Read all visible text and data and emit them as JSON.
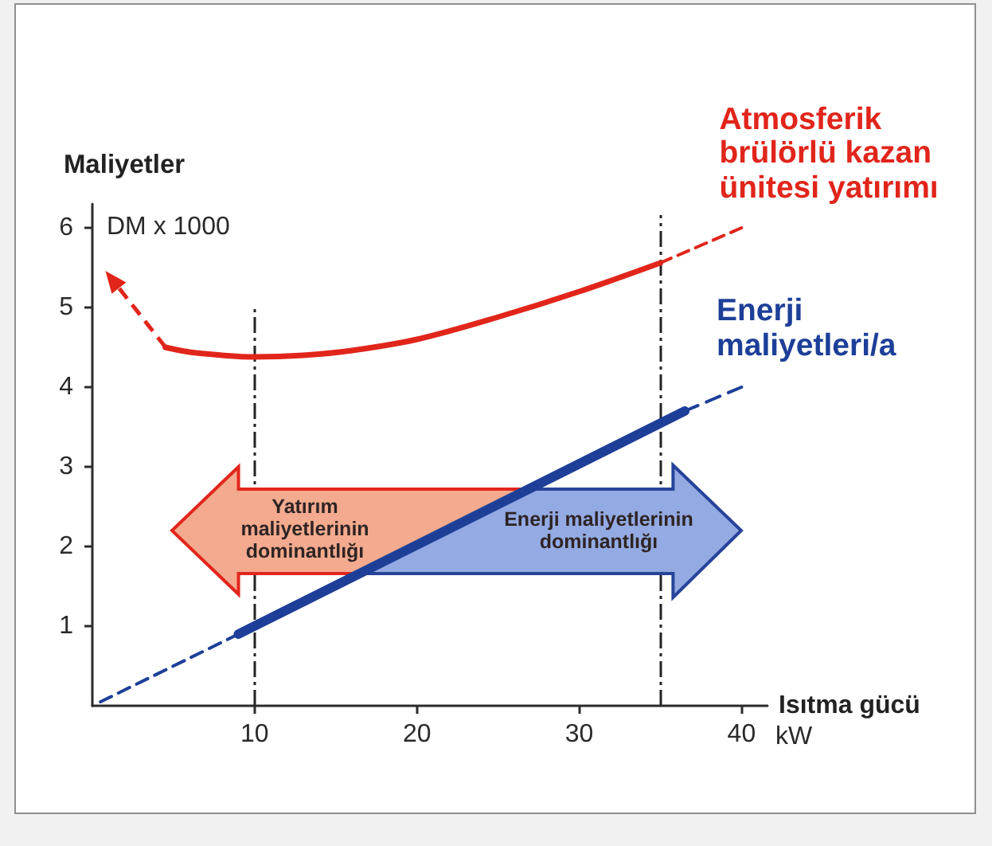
{
  "chart_data": {
    "type": "line",
    "xlabel": "Isıtma gücü",
    "ylabel": "Maliyetler",
    "annotations": [
      "DM x 1000",
      "kW",
      "Yatırım maliyetlerinin dominantlığı",
      "Enerji maliyetlerinin dominantlığı"
    ],
    "xlim": [
      0,
      41.6
    ],
    "ylim": [
      0,
      6.3
    ],
    "xticks": [
      10,
      20,
      30,
      40
    ],
    "yticks": [
      1,
      2,
      3,
      4,
      5,
      6
    ],
    "marker": "none",
    "series": [
      {
        "name": "Atmosferik brülörlü kazan ünitesi yatırımı",
        "color": "#e1251b",
        "line_style": "solid",
        "x": [
          4.5,
          6,
          8,
          10,
          13,
          16,
          20,
          25,
          30,
          35
        ],
        "values": [
          4.5,
          4.44,
          4.4,
          4.38,
          4.4,
          4.46,
          4.6,
          4.88,
          5.2,
          5.56
        ]
      },
      {
        "color": "#e1251b",
        "line_style": "dashed",
        "x": [
          35,
          40
        ],
        "values": [
          5.56,
          6.0
        ]
      },
      {
        "color": "#1d3f98",
        "line_style": "dashed",
        "x": [
          0.5,
          9
        ],
        "values": [
          0.05,
          0.9
        ]
      },
      {
        "name": "Enerji maliyetleri/a",
        "color": "#1d3f98",
        "line_style": "solid",
        "x": [
          9,
          36.5
        ],
        "values": [
          0.9,
          3.7
        ]
      },
      {
        "color": "#1d3f98",
        "line_style": "dashed",
        "x": [
          36.5,
          40
        ],
        "values": [
          3.7,
          4.0
        ]
      }
    ],
    "ref_lines": [
      {
        "axis": "x",
        "value": 10,
        "line_style": "dashed",
        "color": "#222222"
      },
      {
        "axis": "x",
        "value": 35,
        "line_style": "dashed",
        "color": "#222222"
      }
    ]
  }
}
